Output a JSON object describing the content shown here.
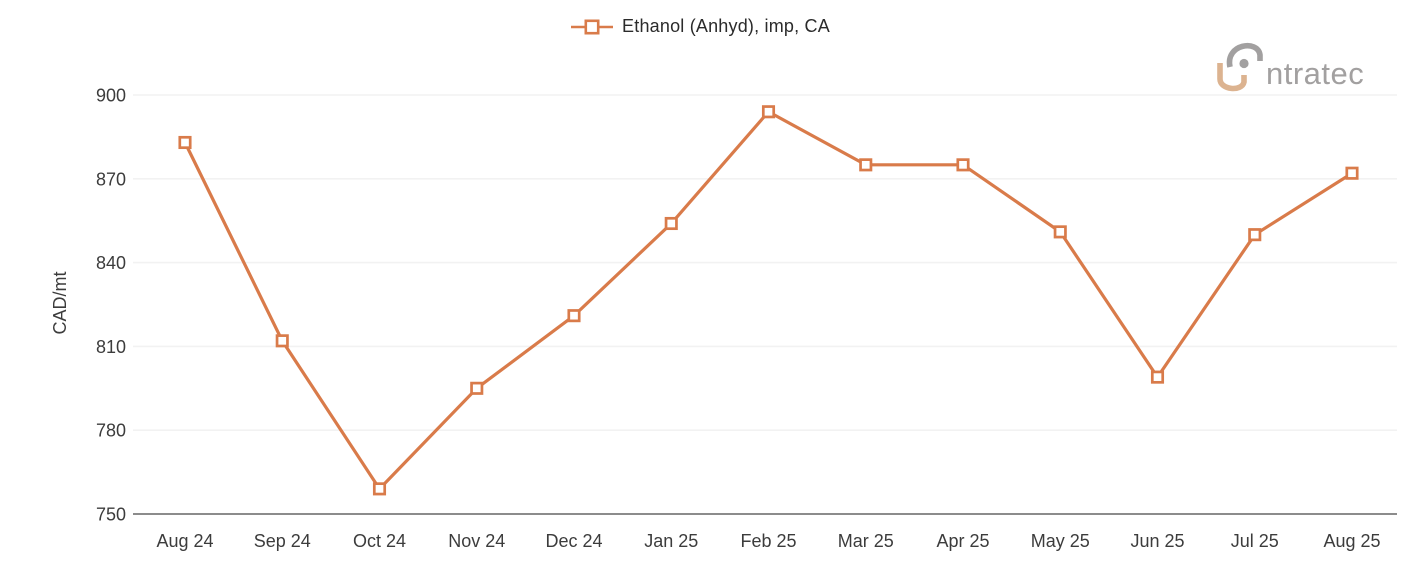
{
  "legend": {
    "label": "Ethanol (Anhyd), imp, CA"
  },
  "logo": {
    "text": "ntratec",
    "alt": "intratec"
  },
  "colors": {
    "series_line": "#d97b4a",
    "marker_fill": "#ffffff",
    "gridline": "#f2f2f2",
    "axis_line": "#8c8c8c",
    "tick_text": "#3c3c3c",
    "legend_text": "#2b2b2b",
    "logo_gray": "#a2a0a0",
    "logo_tan": "#dcb390"
  },
  "chart_data": {
    "type": "line",
    "title": "",
    "xlabel": "",
    "ylabel": "CAD/mt",
    "categories": [
      "Aug 24",
      "Sep 24",
      "Oct 24",
      "Nov 24",
      "Dec 24",
      "Jan 25",
      "Feb 25",
      "Mar 25",
      "Apr 25",
      "May 25",
      "Jun 25",
      "Jul 25",
      "Aug 25"
    ],
    "series": [
      {
        "name": "Ethanol (Anhyd), imp, CA",
        "values": [
          883,
          812,
          759,
          795,
          821,
          854,
          894,
          875,
          875,
          851,
          799,
          850,
          872
        ]
      }
    ],
    "ylim": [
      750,
      900
    ],
    "yticks": [
      750,
      780,
      810,
      840,
      870,
      900
    ],
    "grid": true,
    "legend_position": "top-center",
    "marker": "hollow-square",
    "unit": "CAD/mt"
  }
}
